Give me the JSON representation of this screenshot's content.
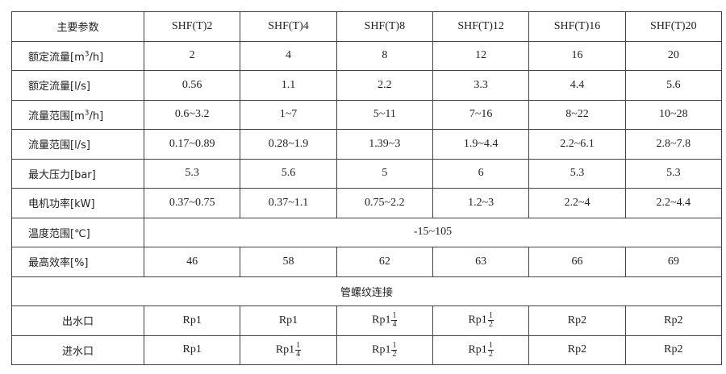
{
  "header": {
    "label": "主要参数",
    "models": [
      "SHF(T)2",
      "SHF(T)4",
      "SHF(T)8",
      "SHF(T)12",
      "SHF(T)16",
      "SHF(T)20"
    ]
  },
  "rows": [
    {
      "label_pre": "额定流量[m",
      "label_sup": "3",
      "label_post": "/h]",
      "values": [
        "2",
        "4",
        "8",
        "12",
        "16",
        "20"
      ]
    },
    {
      "label": "额定流量[l/s]",
      "values": [
        "0.56",
        "1.1",
        "2.2",
        "3.3",
        "4.4",
        "5.6"
      ]
    },
    {
      "label_pre": "流量范围[m",
      "label_sup": "3",
      "label_post": "/h]",
      "values": [
        "0.6~3.2",
        "1~7",
        "5~11",
        "7~16",
        "8~22",
        "10~28"
      ]
    },
    {
      "label": "流量范围[l/s]",
      "values": [
        "0.17~0.89",
        "0.28~1.9",
        "1.39~3",
        "1.9~4.4",
        "2.2~6.1",
        "2.8~7.8"
      ]
    },
    {
      "label": "最大压力[bar]",
      "values": [
        "5.3",
        "5.6",
        "5",
        "6",
        "5.3",
        "5.3"
      ]
    },
    {
      "label": "电机功率[kW]",
      "values": [
        "0.37~0.75",
        "0.37~1.1",
        "0.75~2.2",
        "1.2~3",
        "2.2~4",
        "2.2~4.4"
      ]
    }
  ],
  "temperature": {
    "label": "温度范围[℃]",
    "value": "-15~105"
  },
  "efficiency": {
    "label": "最高效率[%]",
    "values": [
      "46",
      "58",
      "62",
      "63",
      "66",
      "69"
    ]
  },
  "connection_title": "管螺纹连接",
  "outlet": {
    "label": "出水口",
    "values": [
      {
        "whole": "Rp1"
      },
      {
        "whole": "Rp1"
      },
      {
        "whole": "Rp1",
        "num": "1",
        "den": "4"
      },
      {
        "whole": "Rp1",
        "num": "1",
        "den": "2"
      },
      {
        "whole": "Rp2"
      },
      {
        "whole": "Rp2"
      }
    ]
  },
  "inlet": {
    "label": "进水口",
    "values": [
      {
        "whole": "Rp1"
      },
      {
        "whole": "Rp1",
        "num": "1",
        "den": "4"
      },
      {
        "whole": "Rp1",
        "num": "1",
        "den": "2"
      },
      {
        "whole": "Rp1",
        "num": "1",
        "den": "2"
      },
      {
        "whole": "Rp2"
      },
      {
        "whole": "Rp2"
      }
    ]
  }
}
